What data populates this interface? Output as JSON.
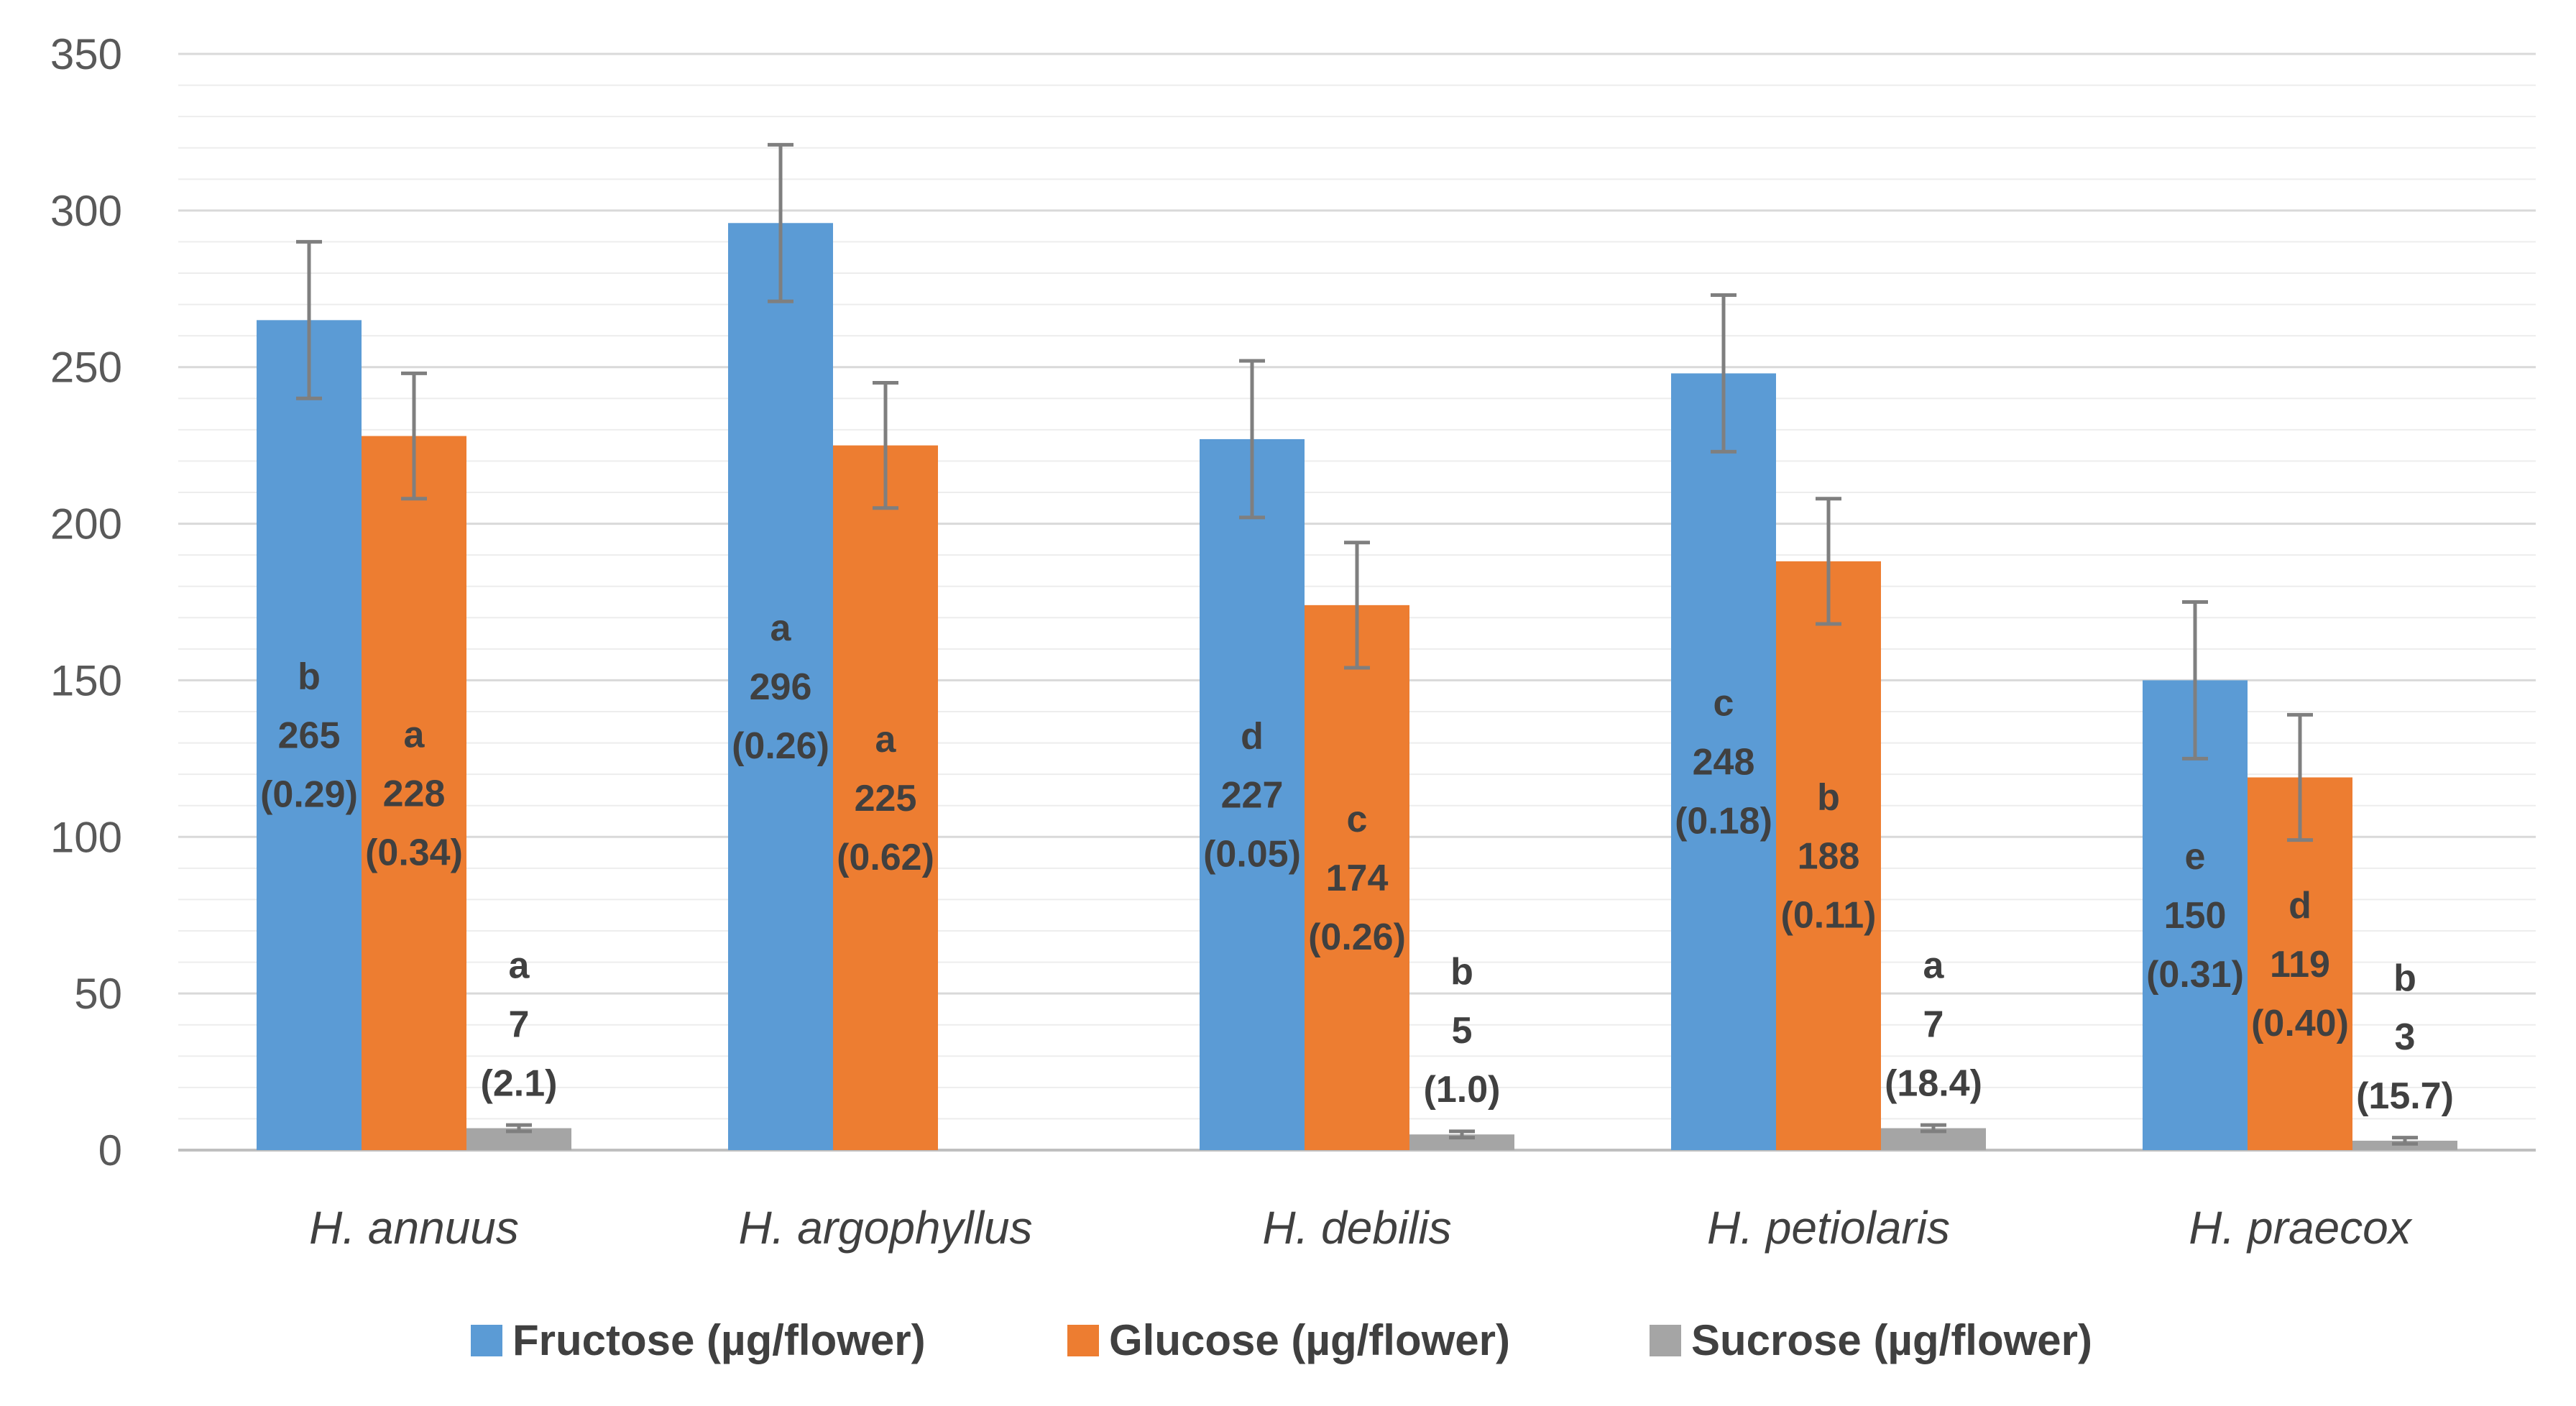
{
  "chart_data": {
    "type": "bar",
    "title": "",
    "xlabel": "",
    "ylabel": "",
    "ylim": [
      0,
      350
    ],
    "y_major_step": 50,
    "y_minor_step": 10,
    "grid": true,
    "legend_position": "bottom",
    "categories": [
      "H. annuus",
      "H. argophyllus",
      "H. debilis",
      "H. petiolaris",
      "H. praecox"
    ],
    "series": [
      {
        "name": "Fructose (µg/flower)",
        "color": "#5B9BD5",
        "values": [
          265,
          296,
          227,
          248,
          150
        ],
        "errors": [
          25,
          25,
          25,
          25,
          25
        ],
        "labels": [
          [
            "b",
            "265",
            "(0.29)"
          ],
          [
            "a",
            "296",
            "(0.26)"
          ],
          [
            "d",
            "227",
            "(0.05)"
          ],
          [
            "c",
            "248",
            "(0.18)"
          ],
          [
            "e",
            "150",
            "(0.31)"
          ]
        ]
      },
      {
        "name": "Glucose (µg/flower)",
        "color": "#ED7D31",
        "values": [
          228,
          225,
          174,
          188,
          119
        ],
        "errors": [
          20,
          20,
          20,
          20,
          20
        ],
        "labels": [
          [
            "a",
            "228",
            "(0.34)"
          ],
          [
            "a",
            "225",
            "(0.62)"
          ],
          [
            "c",
            "174",
            "(0.26)"
          ],
          [
            "b",
            "188",
            "(0.11)"
          ],
          [
            "d",
            "119",
            "(0.40)"
          ]
        ]
      },
      {
        "name": "Sucrose (µg/flower)",
        "color": "#A5A5A5",
        "values": [
          7,
          null,
          5,
          7,
          3
        ],
        "errors": [
          1,
          null,
          1,
          1,
          1
        ],
        "labels": [
          [
            "a",
            "7",
            "(2.1)"
          ],
          null,
          [
            "b",
            "5",
            "(1.0)"
          ],
          [
            "a",
            "7",
            "(18.4)"
          ],
          [
            "b",
            "3",
            "(15.7)"
          ]
        ]
      }
    ]
  }
}
